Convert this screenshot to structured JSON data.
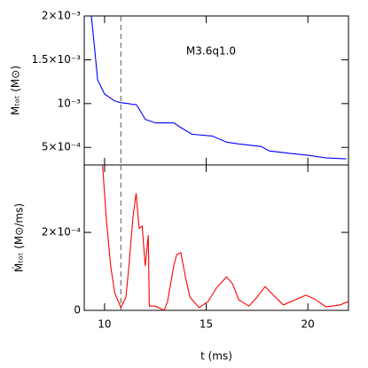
{
  "chart_data": [
    {
      "type": "line",
      "annotation": "M3.6q1.0",
      "ylabel": "Mₜₒₜ (M⊙)",
      "xlim": [
        9,
        22
      ],
      "xticks": [
        10,
        15,
        20
      ],
      "ylim": [
        0.0003,
        0.002
      ],
      "yticks": [
        {
          "value": 0.0005,
          "label": "5×10⁻⁴"
        },
        {
          "value": 0.001,
          "label": "10⁻³"
        },
        {
          "value": 0.0015,
          "label": "1.5×10⁻³"
        },
        {
          "value": 0.002,
          "label": "2×10⁻³"
        }
      ],
      "vline": 10.8,
      "x": [
        9.35,
        9.5,
        9.66,
        10.0,
        10.5,
        10.8,
        11.17,
        11.4,
        11.55,
        11.7,
        12.0,
        12.5,
        13.4,
        13.8,
        14.3,
        15.3,
        16.0,
        16.6,
        17.7,
        18.1,
        19.2,
        20.0,
        20.9,
        21.9
      ],
      "series": [
        {
          "color": "#0000ff",
          "values": [
            0.002,
            0.00165,
            0.00127,
            0.00111,
            0.00103,
            0.00101,
            0.001,
            0.00099,
            0.00099,
            0.00094,
            0.00082,
            0.00078,
            0.00078,
            0.00072,
            0.00065,
            0.00063,
            0.00056,
            0.00054,
            0.00051,
            0.00046,
            0.00043,
            0.00041,
            0.00038,
            0.00037
          ]
        }
      ]
    },
    {
      "type": "line",
      "xlabel": "t (ms)",
      "ylabel": "Ṁₜₒₜ (M⊙/ms)",
      "xlim": [
        9,
        22
      ],
      "xticks": [
        10,
        15,
        20
      ],
      "ylim": [
        0,
        0.000373
      ],
      "yticks": [
        0,
        {
          "value": 0.0002,
          "label": "2×10⁻⁴"
        }
      ],
      "vline": 10.8,
      "x": [
        9.9,
        10.1,
        10.3,
        10.5,
        10.8,
        11.05,
        11.2,
        11.4,
        11.55,
        11.7,
        11.85,
        12.0,
        12.15,
        12.2,
        12.5,
        12.93,
        13.1,
        13.4,
        13.55,
        13.75,
        14.0,
        14.2,
        14.65,
        15.1,
        15.5,
        16.0,
        16.3,
        16.6,
        17.1,
        17.5,
        17.9,
        18.3,
        18.8,
        19.2,
        19.9,
        20.3,
        20.9,
        21.6,
        22.0
      ],
      "series": [
        {
          "color": "#ff0000",
          "values": [
            0.000373,
            0.000227,
            0.000114,
            4.5e-05,
            7e-06,
            3.4e-05,
            0.000114,
            0.00024,
            0.0003,
            0.00021,
            0.000216,
            0.000114,
            0.000193,
            1.1e-05,
            1.1e-05,
            0,
            2.3e-05,
            0.000114,
            0.000143,
            0.000148,
            8e-05,
            3.4e-05,
            7e-06,
            2.3e-05,
            5.7e-05,
            8.6e-05,
            6.8e-05,
            2.7e-05,
            1.1e-05,
            3.4e-05,
            6.1e-05,
            3.9e-05,
            1.4e-05,
            2.3e-05,
            3.9e-05,
            3e-05,
            9e-06,
            1.4e-05,
            2.3e-05
          ]
        }
      ]
    }
  ]
}
